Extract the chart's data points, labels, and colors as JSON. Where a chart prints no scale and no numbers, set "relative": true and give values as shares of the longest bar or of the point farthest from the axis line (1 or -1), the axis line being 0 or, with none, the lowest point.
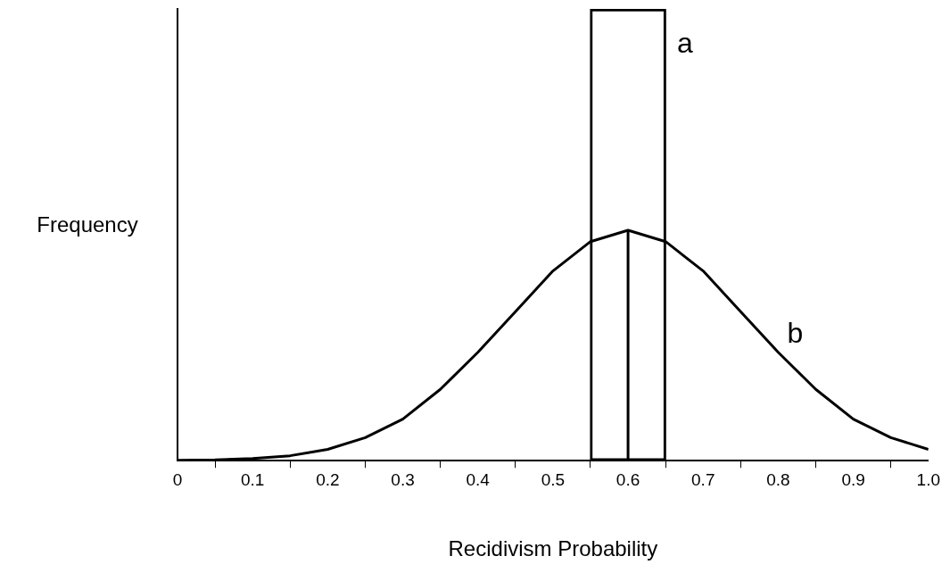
{
  "chart_data": {
    "type": "line",
    "xlabel": "Recidivism Probability",
    "ylabel": "Frequency",
    "relative": true,
    "xlim": [
      0,
      1
    ],
    "xticks": [
      0,
      0.1,
      0.2,
      0.3,
      0.4,
      0.5,
      0.6,
      0.7,
      0.8,
      0.9,
      {
        "value": 1,
        "label": "1.0"
      }
    ],
    "grid": false,
    "legend": false,
    "marker": "none",
    "line_style": "solid",
    "series": [
      {
        "name": "a",
        "type": "bar",
        "color": "#000000",
        "x": [
          0.6
        ],
        "values": [
          1
        ]
      },
      {
        "name": "b",
        "color": "#000000",
        "x": [
          0,
          0.05,
          0.1,
          0.15,
          0.2,
          0.25,
          0.3,
          0.35,
          0.4,
          0.45,
          0.5,
          0.55,
          0.6,
          0.65,
          0.7,
          0.75,
          0.8,
          0.85,
          0.9,
          0.95,
          1
        ],
        "values": [
          0.001,
          0.002,
          0.005,
          0.011,
          0.025,
          0.051,
          0.092,
          0.158,
          0.24,
          0.33,
          0.42,
          0.485,
          0.51,
          0.485,
          0.42,
          0.33,
          0.24,
          0.158,
          0.092,
          0.051,
          0.025
        ]
      },
      {
        "color": "#000000",
        "x": [
          0.6,
          0.6
        ],
        "values": [
          0,
          0.51
        ]
      }
    ]
  }
}
